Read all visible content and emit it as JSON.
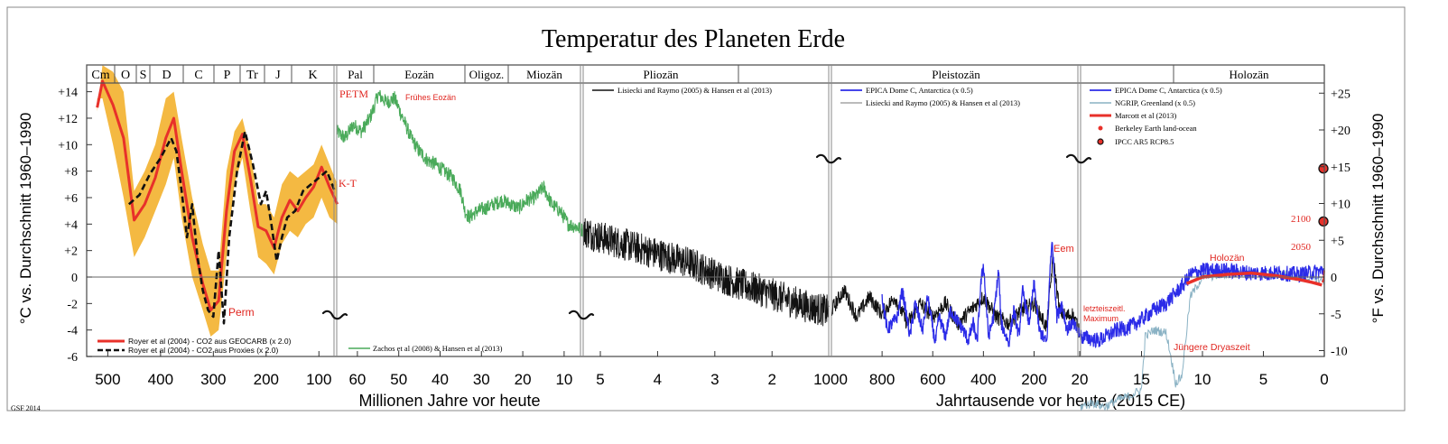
{
  "chart_data": {
    "type": "line",
    "title": "Temperatur des Planeten Erde",
    "credit": "GSF 2014",
    "ylabel_left": "°C vs. Durchschnitt 1960–1990",
    "ylabel_right": "°F vs. Durchschnitt 1960–1990",
    "xlabel_left": "Millionen Jahre vor heute",
    "xlabel_right": "Jahrtausende vor heute (2015 CE)",
    "ylim_celsius": [
      -6,
      15
    ],
    "yticks_celsius": [
      "+14",
      "+12",
      "+10",
      "+8",
      "+6",
      "+4",
      "+2",
      "0",
      "-2",
      "-4",
      "-6"
    ],
    "yticks_fahrenheit": [
      "+25",
      "+20",
      "+15",
      "+10",
      "+5",
      "0",
      "-5",
      "-10"
    ],
    "grid": false,
    "panels": [
      {
        "range": "540-65 Millionen Jahre",
        "xticks": [
          "500",
          "400",
          "300",
          "200",
          "100"
        ],
        "periods": [
          "Cm",
          "O",
          "S",
          "D",
          "C",
          "P",
          "Tr",
          "J",
          "K"
        ],
        "legend": [
          "Royer et al (2004) - CO2 aus GEOCARB (x 2.0)",
          "Royer et al (2004) - CO2 aus Proxies (x 2.0)"
        ],
        "annotations": [
          "Perm",
          "K-T"
        ],
        "series": [
          {
            "name": "Royer et al (2004) - CO2 aus GEOCARB (x 2.0)",
            "color": "#e8312a",
            "x": [
              520,
              510,
              490,
              470,
              450,
              430,
              410,
              390,
              375,
              360,
              340,
              320,
              305,
              290,
              275,
              260,
              245,
              230,
              215,
              200,
              185,
              170,
              155,
              140,
              125,
              110,
              95,
              80,
              65
            ],
            "y": [
              12.8,
              14.8,
              13.0,
              10.5,
              4.3,
              5.5,
              7.5,
              10.5,
              12.0,
              8.0,
              3.0,
              -0.5,
              -2.5,
              -1.8,
              5.0,
              9.5,
              10.8,
              7.5,
              3.8,
              3.5,
              2.2,
              4.5,
              5.8,
              5.0,
              6.0,
              6.8,
              8.3,
              6.8,
              5.5
            ]
          },
          {
            "name": "Royer et al (2004) - CO2 aus Proxies (x 2.0)",
            "color": "#111111",
            "x": [
              460,
              440,
              420,
              400,
              380,
              370,
              360,
              350,
              340,
              330,
              320,
              310,
              300,
              290,
              280,
              270,
              255,
              240,
              225,
              210,
              200,
              190,
              180,
              170,
              160,
              145,
              130,
              115,
              100,
              85,
              70
            ],
            "y": [
              5.5,
              6.2,
              7.8,
              9.0,
              10.5,
              9.5,
              6.5,
              3.0,
              5.5,
              1.5,
              -1.0,
              -2.5,
              -3.0,
              2.0,
              -3.5,
              3.0,
              8.0,
              11.0,
              8.5,
              5.5,
              6.5,
              4.0,
              1.2,
              3.0,
              4.5,
              5.0,
              6.5,
              7.0,
              7.5,
              8.0,
              6.5
            ]
          }
        ]
      },
      {
        "range": "65-5.3 Millionen Jahre",
        "xticks": [
          "60",
          "50",
          "40",
          "30",
          "20",
          "10"
        ],
        "epochs": [
          "Pal",
          "Eozän",
          "Oligoz.",
          "Miozän"
        ],
        "legend": [
          "Zachos et al (2008) & Hansen et al (2013)"
        ],
        "annotations": [
          "PETM",
          "Frühes Eozän"
        ],
        "series": [
          {
            "name": "Zachos et al (2008) & Hansen et al (2013)",
            "color": "#4aaa5a",
            "x": [
              65,
              63,
              61,
              59,
              57,
              56,
              55,
              53,
              51,
              49,
              47,
              45,
              43,
              41,
              39,
              37,
              35,
              34,
              33,
              31,
              29,
              27,
              25,
              23,
              21,
              19,
              17,
              15,
              13,
              11,
              9,
              7,
              5.3
            ],
            "y": [
              11.0,
              10.5,
              11.5,
              11.0,
              12.0,
              12.8,
              13.8,
              13.2,
              13.5,
              12.0,
              10.5,
              9.5,
              8.8,
              8.5,
              8.0,
              7.5,
              6.5,
              5.0,
              4.5,
              5.0,
              5.2,
              5.5,
              5.8,
              5.5,
              5.2,
              5.8,
              6.0,
              6.8,
              5.5,
              5.0,
              4.0,
              3.8,
              3.5
            ]
          }
        ]
      },
      {
        "range": "5.3-1 Millionen Jahre",
        "xticks": [
          "5",
          "4",
          "3",
          "2",
          "1000"
        ],
        "epochs": [
          "Pliozän"
        ],
        "legend": [
          "Lisiecki and Raymo (2005) & Hansen et al (2013)"
        ],
        "series": [
          {
            "name": "Lisiecki and Raymo (2005) & Hansen et al (2013)",
            "color": "#111111",
            "x": [
              5.3,
              5.0,
              4.6,
              4.2,
              3.8,
              3.4,
              3.0,
              2.6,
              2.2,
              1.8,
              1.4,
              1.0
            ],
            "y": [
              3.5,
              3.0,
              2.5,
              2.0,
              1.5,
              1.0,
              0.2,
              -0.5,
              -1.0,
              -1.6,
              -2.2,
              -2.6
            ]
          }
        ]
      },
      {
        "range": "1000-20 Jahrtausende",
        "xticks": [
          "800",
          "600",
          "400",
          "200",
          "20"
        ],
        "epochs": [
          "Pleistozän"
        ],
        "legend": [
          "EPICA Dome C, Antarctica (x 0.5)",
          "Lisiecki and Raymo (2005) & Hansen et al (2013)"
        ],
        "annotations": [
          "Eem"
        ],
        "series": [
          {
            "name": "EPICA Dome C, Antarctica (x 0.5)",
            "color": "#2b2be8",
            "x": [
              800,
              780,
              740,
              720,
              690,
              670,
              640,
              620,
              590,
              575,
              550,
              530,
              480,
              460,
              440,
              425,
              410,
              400,
              380,
              360,
              340,
              330,
              300,
              280,
              260,
              245,
              220,
              200,
              180,
              150,
              135,
              128,
              110,
              90,
              70,
              50,
              30,
              20
            ],
            "y": [
              -1.5,
              -4.0,
              -3.0,
              -1.0,
              -4.5,
              -2.0,
              -4.0,
              -1.5,
              -5.0,
              -3.0,
              -4.5,
              -2.5,
              -4.0,
              -4.8,
              -3.5,
              -5.0,
              -0.5,
              1.0,
              -4.5,
              -3.0,
              0.5,
              -3.5,
              -5.0,
              -2.5,
              -4.5,
              -1.0,
              -3.5,
              -0.5,
              -4.0,
              -5.0,
              1.5,
              2.5,
              -3.0,
              -2.0,
              -4.0,
              -3.5,
              -4.0,
              -4.5
            ]
          },
          {
            "name": "Lisiecki and Raymo (2005) & Hansen et al (2013)",
            "color": "#111111",
            "x": [
              1000,
              950,
              900,
              850,
              800,
              750,
              700,
              650,
              600,
              550,
              500,
              450,
              400,
              350,
              300,
              250,
              200,
              150,
              125,
              100,
              75,
              50,
              20
            ],
            "y": [
              -2.5,
              -1.0,
              -3.0,
              -1.5,
              -2.8,
              -1.5,
              -3.5,
              -2.0,
              -3.0,
              -2.0,
              -3.5,
              -2.5,
              -1.5,
              -3.0,
              -3.5,
              -2.5,
              -2.0,
              -3.8,
              1.5,
              -2.5,
              -3.0,
              -2.8,
              -4.0
            ]
          }
        ]
      },
      {
        "range": "20-0 Jahrtausende",
        "xticks": [
          "15",
          "10",
          "5",
          "0"
        ],
        "epochs": [
          "Holozän"
        ],
        "legend": [
          "EPICA Dome C, Antarctica (x 0.5)",
          "NGRIP, Greenland (x 0.5)",
          "Marcott et al (2013)",
          "Berkeley Earth land-ocean",
          "IPCC AR5 RCP8.5"
        ],
        "annotations": [
          "letzteiszeitl. Maximum",
          "Jüngere Dryaszeit",
          "Holozän",
          "2100",
          "2050"
        ],
        "series": [
          {
            "name": "EPICA Dome C, Antarctica (x 0.5)",
            "color": "#2b2be8",
            "x": [
              20,
              18.5,
              17,
              16,
              15,
              14,
              13,
              12,
              11.5,
              11,
              10,
              8,
              6,
              4,
              2,
              0
            ],
            "y": [
              -4.5,
              -4.8,
              -4.0,
              -3.8,
              -3.2,
              -2.5,
              -2.0,
              -1.0,
              -0.5,
              0.2,
              0.5,
              0.5,
              0.3,
              0.3,
              0.2,
              0.5
            ]
          },
          {
            "name": "NGRIP, Greenland (x 0.5)",
            "color": "#8ab2c4",
            "x": [
              20,
              19,
              18,
              17,
              16,
              15,
              14.7,
              14,
              13,
              12.8,
              12.2,
              11.7,
              11,
              10,
              8,
              6,
              4,
              2,
              0
            ],
            "y": [
              -9.8,
              -9.5,
              -9.8,
              -9.3,
              -9.0,
              -8.5,
              -4.5,
              -4.0,
              -4.2,
              -5.0,
              -8.0,
              -7.5,
              -1.5,
              0.0,
              0.2,
              0.4,
              0.2,
              0.0,
              -0.3
            ]
          },
          {
            "name": "Marcott et al (2013)",
            "color": "#e8312a",
            "x": [
              11.3,
              10,
              8,
              6,
              4,
              2,
              1,
              0.2
            ],
            "y": [
              -0.5,
              0.0,
              0.2,
              0.3,
              0.1,
              -0.2,
              -0.4,
              -0.6
            ]
          },
          {
            "name": "Berkeley Earth land-ocean",
            "color": "#e8312a",
            "x": [
              0.165,
              0.1,
              0.05,
              0.015
            ],
            "y": [
              -0.4,
              -0.3,
              -0.1,
              0.5
            ]
          },
          {
            "name": "IPCC AR5 RCP8.5",
            "color": "#e8312a",
            "x": [
              0.0,
              0.0
            ],
            "y": [
              4.2,
              8.2
            ]
          }
        ]
      }
    ]
  }
}
